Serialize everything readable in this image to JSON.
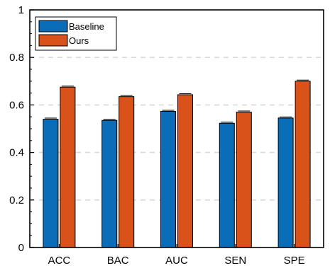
{
  "chart_data": {
    "type": "bar",
    "categories": [
      "ACC",
      "BAC",
      "AUC",
      "SEN",
      "SPE"
    ],
    "series": [
      {
        "name": "Baseline",
        "values": [
          0.54,
          0.535,
          0.573,
          0.523,
          0.545
        ],
        "color": "#0b6cb8"
      },
      {
        "name": "Ours",
        "values": [
          0.675,
          0.635,
          0.643,
          0.57,
          0.7
        ],
        "color": "#d95219"
      }
    ],
    "ylim": [
      0,
      1
    ],
    "yticks": [
      "0",
      "0.2",
      "0.4",
      "0.6",
      "0.8",
      "1"
    ],
    "grid": {
      "y": true,
      "style": "dashed"
    },
    "error_bars": true,
    "legend_position": "top-left",
    "title": "",
    "xlabel": "",
    "ylabel": ""
  }
}
